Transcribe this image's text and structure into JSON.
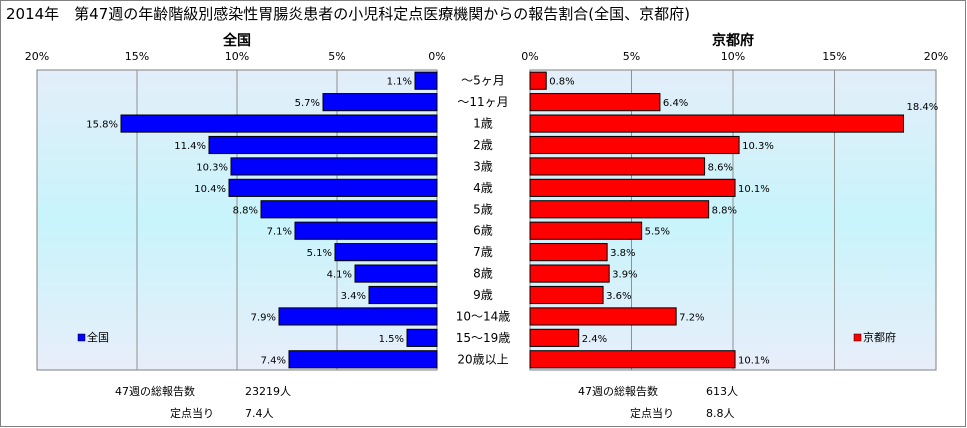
{
  "title": "2014年　第47週の年齢階級別感染性胃腸炎患者の小児科定点医療機関からの報告割合(全国、京都府)",
  "chart_data": {
    "type": "bar",
    "orientation": "horizontal",
    "categories": [
      "～5ヶ月",
      "～11ヶ月",
      "1歳",
      "2歳",
      "3歳",
      "4歳",
      "5歳",
      "6歳",
      "7歳",
      "8歳",
      "9歳",
      "10～14歳",
      "15～19歳",
      "20歳以上"
    ],
    "xlim": [
      0,
      20
    ],
    "x_ticks": [
      "0%",
      "5%",
      "10%",
      "15%",
      "20%"
    ],
    "grid": true,
    "series": [
      {
        "name": "全国",
        "color": "#0000ff",
        "direction": "left",
        "values": [
          1.1,
          5.7,
          15.8,
          11.4,
          10.3,
          10.4,
          8.8,
          7.1,
          5.1,
          4.1,
          3.4,
          7.9,
          1.5,
          7.4
        ],
        "labels": [
          "1.1%",
          "5.7%",
          "15.8%",
          "11.4%",
          "10.3%",
          "10.4%",
          "8.8%",
          "7.1%",
          "5.1%",
          "4.1%",
          "3.4%",
          "7.9%",
          "1.5%",
          "7.4%"
        ],
        "legend_position": "bottom-left"
      },
      {
        "name": "京都府",
        "color": "#ff0000",
        "direction": "right",
        "values": [
          0.8,
          6.4,
          18.4,
          10.3,
          8.6,
          10.1,
          8.8,
          5.5,
          3.8,
          3.9,
          3.6,
          7.2,
          2.4,
          10.1
        ],
        "labels": [
          "0.8%",
          "6.4%",
          "18.4%",
          "10.3%",
          "8.6%",
          "10.1%",
          "8.8%",
          "5.5%",
          "3.8%",
          "3.9%",
          "3.6%",
          "7.2%",
          "2.4%",
          "10.1%"
        ],
        "legend_position": "bottom-right"
      }
    ]
  },
  "panels": {
    "left": {
      "heading": "全国",
      "legend": "全国"
    },
    "right": {
      "heading": "京都府",
      "legend": "京都府"
    }
  },
  "footer": {
    "left": {
      "total_label": "47週の総報告数",
      "total_value": "23219人",
      "per_label": "定点当り",
      "per_value": "7.4人"
    },
    "right": {
      "total_label": "47週の総報告数",
      "total_value": "613人",
      "per_label": "定点当り",
      "per_value": "8.8人"
    }
  }
}
